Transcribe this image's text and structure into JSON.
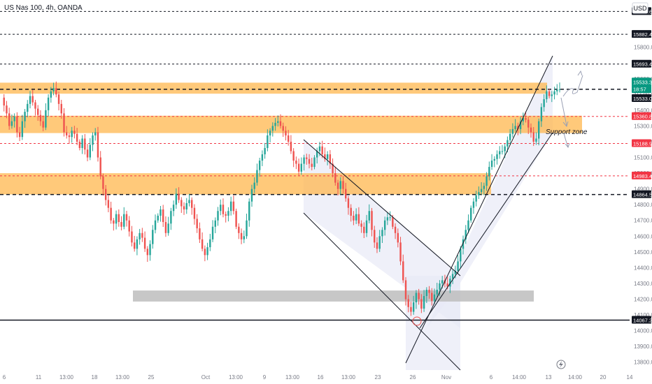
{
  "header": {
    "title": "US Nas 100, 4h, OANDA"
  },
  "currency": "USD",
  "colors": {
    "up": "#26a69a",
    "down": "#ef5350",
    "zone": "#ffb74d",
    "gray_zone": "#bdbdbd",
    "channel": "#e8eaf6",
    "red_line": "#f23645",
    "label_dark": "#131722",
    "label_green": "#089981"
  },
  "chart_data": {
    "type": "candlestick",
    "title": "US Nas 100, 4h, OANDA",
    "ylim": [
      13750,
      16100
    ],
    "y_ticks": [
      13800,
      13900,
      14000,
      14100,
      14200,
      14300,
      14400,
      14500,
      14600,
      14700,
      14800,
      14900,
      15000,
      15100,
      15200,
      15300,
      15400,
      15500,
      15600,
      15700,
      15800
    ],
    "x_ticks": [
      "6",
      "11",
      "13:00",
      "18",
      "13:00",
      "25",
      "Oct",
      "13:00",
      "9",
      "13:00",
      "16",
      "13:00",
      "23",
      "26",
      "Nov",
      "6",
      "14:00",
      "13",
      "14:00",
      "20",
      "14"
    ],
    "price_labels": [
      {
        "value": "16027.6",
        "style": "dark"
      },
      {
        "value": "15882.4",
        "style": "dark"
      },
      {
        "value": "15693.4",
        "style": "dark"
      },
      {
        "value": "15533.3",
        "style": "green",
        "extra": "18:57"
      },
      {
        "value": "15533.0",
        "style": "dark"
      },
      {
        "value": "15360.8",
        "style": "red"
      },
      {
        "value": "15188.9",
        "style": "red"
      },
      {
        "value": "14983.4",
        "style": "red"
      },
      {
        "value": "14864.5",
        "style": "dark"
      },
      {
        "value": "14067.2",
        "style": "dark"
      }
    ],
    "horizontal_lines": [
      {
        "price": 16027.6,
        "style": "dashed"
      },
      {
        "price": 15882.4,
        "style": "dashed"
      },
      {
        "price": 15693.4,
        "style": "dashed"
      },
      {
        "price": 15533.0,
        "style": "dashed-bold"
      },
      {
        "price": 15360.8,
        "style": "red-dashed"
      },
      {
        "price": 15188.9,
        "style": "red-dashed"
      },
      {
        "price": 14983.4,
        "style": "red-dashed"
      },
      {
        "price": 14864.5,
        "style": "dashed-bold"
      },
      {
        "price": 14067.2,
        "style": "solid"
      }
    ],
    "zones": [
      {
        "label": "",
        "from": 15505,
        "to": 15575,
        "x0": 0,
        "x1": 782
      },
      {
        "label": "Support zone",
        "from": 15255,
        "to": 15365,
        "x0": 0,
        "x1": 832
      },
      {
        "label": "",
        "from": 14865,
        "to": 15000,
        "x0": 0,
        "x1": 702
      },
      {
        "label": "",
        "from": 14185,
        "to": 14255,
        "x0": 190,
        "x1": 763
      }
    ],
    "annotations": [
      "Support zone"
    ],
    "path": [
      15480,
      15430,
      15380,
      15300,
      15330,
      15360,
      15260,
      15230,
      15330,
      15390,
      15440,
      15490,
      15450,
      15410,
      15370,
      15330,
      15290,
      15400,
      15480,
      15520,
      15540,
      15500,
      15440,
      15380,
      15260,
      15240,
      15230,
      15270,
      15250,
      15200,
      15160,
      15220,
      15150,
      15100,
      15180,
      15240,
      15260,
      15100,
      14980,
      14900,
      14830,
      14780,
      14700,
      14680,
      14740,
      14690,
      14660,
      14740,
      14700,
      14630,
      14560,
      14520,
      14580,
      14620,
      14590,
      14520,
      14480,
      14550,
      14640,
      14700,
      14730,
      14770,
      14690,
      14620,
      14680,
      14760,
      14800,
      14870,
      14830,
      14790,
      14770,
      14810,
      14830,
      14780,
      14710,
      14650,
      14580,
      14520,
      14480,
      14530,
      14580,
      14660,
      14700,
      14760,
      14800,
      14740,
      14730,
      14760,
      14820,
      14760,
      14660,
      14620,
      14580,
      14600,
      14700,
      14820,
      14900,
      14940,
      15020,
      15080,
      15120,
      15160,
      15240,
      15270,
      15300,
      15320,
      15330,
      15300,
      15270,
      15240,
      15200,
      15140,
      15080,
      15060,
      15010,
      15060,
      15100,
      15090,
      15060,
      15040,
      15100,
      15140,
      15170,
      15120,
      15090,
      15120,
      15060,
      15000,
      14940,
      14900,
      14950,
      14900,
      14840,
      14780,
      14730,
      14700,
      14740,
      14680,
      14660,
      14620,
      14700,
      14760,
      14640,
      14560,
      14520,
      14600,
      14640,
      14700,
      14720,
      14720,
      14660,
      14620,
      14560,
      14440,
      14320,
      14200,
      14150,
      14120,
      14180,
      14240,
      14200,
      14140,
      14220,
      14260,
      14240,
      14190,
      14230,
      14260,
      14300,
      14320,
      14300,
      14280,
      14330,
      14360,
      14380,
      14440,
      14520,
      14580,
      14640,
      14700,
      14780,
      14820,
      14860,
      14880,
      14900,
      14920,
      14980,
      15040,
      15080,
      15090,
      15120,
      15140,
      15140,
      15170,
      15210,
      15250,
      15280,
      15300,
      15280,
      15330,
      15350,
      15340,
      15290,
      15260,
      15200,
      15220,
      15330,
      15420,
      15470,
      15520,
      15490,
      15500,
      15520,
      15530,
      15533
    ]
  }
}
